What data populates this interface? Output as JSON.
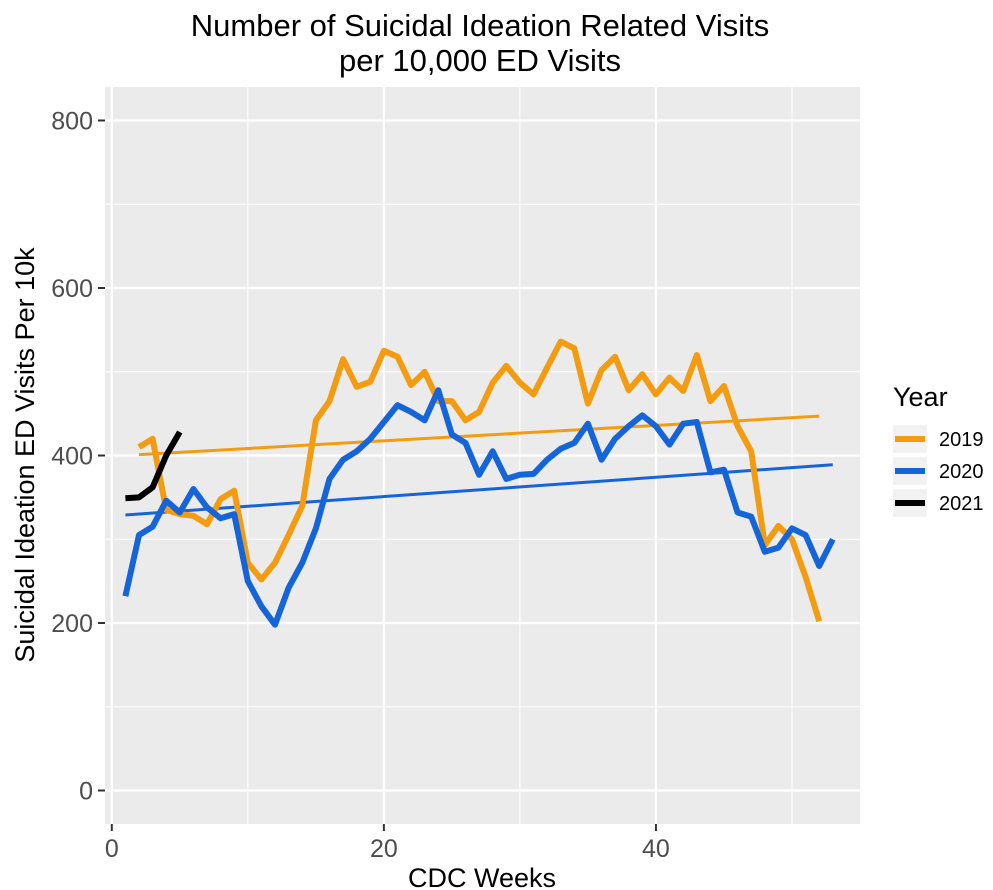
{
  "chart_data": {
    "type": "line",
    "title": "Number of Suicidal Ideation Related Visits",
    "subtitle": "per 10,000 ED Visits",
    "xlabel": "CDC Weeks",
    "ylabel": "Suicidal Ideation ED Visits Per 10k",
    "xlim": [
      -0.5,
      55
    ],
    "ylim": [
      -40,
      840
    ],
    "xticks": [
      0,
      20,
      40
    ],
    "yticks": [
      0,
      200,
      400,
      600,
      800
    ],
    "xtick_labels": [
      "0",
      "20",
      "40"
    ],
    "ytick_labels": [
      "0",
      "200",
      "400",
      "600",
      "800"
    ],
    "grid": true,
    "legend": {
      "title": "Year",
      "position": "right"
    },
    "series": [
      {
        "name": "2019",
        "color": "#F39C12",
        "x": [
          2,
          3,
          4,
          5,
          6,
          7,
          8,
          9,
          10,
          11,
          12,
          13,
          14,
          15,
          16,
          17,
          18,
          19,
          20,
          21,
          22,
          23,
          24,
          25,
          26,
          27,
          28,
          29,
          30,
          31,
          32,
          33,
          34,
          35,
          36,
          37,
          38,
          39,
          40,
          41,
          42,
          43,
          44,
          45,
          46,
          47,
          48,
          49,
          50,
          51,
          52
        ],
        "y": [
          410,
          420,
          335,
          330,
          328,
          318,
          348,
          358,
          272,
          252,
          272,
          305,
          340,
          442,
          465,
          515,
          482,
          488,
          525,
          518,
          484,
          500,
          465,
          465,
          442,
          452,
          487,
          507,
          487,
          473,
          505,
          536,
          528,
          462,
          502,
          518,
          478,
          497,
          473,
          493,
          477,
          520,
          465,
          483,
          435,
          405,
          293,
          316,
          300,
          255,
          202
        ],
        "trend": {
          "x": [
            2,
            52
          ],
          "y": [
            401,
            447
          ]
        }
      },
      {
        "name": "2020",
        "color": "#1565D8",
        "x": [
          1,
          2,
          3,
          4,
          5,
          6,
          7,
          8,
          9,
          10,
          11,
          12,
          13,
          14,
          15,
          16,
          17,
          18,
          19,
          20,
          21,
          22,
          23,
          24,
          25,
          26,
          27,
          28,
          29,
          30,
          31,
          32,
          33,
          34,
          35,
          36,
          37,
          38,
          39,
          40,
          41,
          42,
          43,
          44,
          45,
          46,
          47,
          48,
          49,
          50,
          51,
          52,
          53
        ],
        "y": [
          232,
          305,
          315,
          346,
          332,
          360,
          338,
          325,
          330,
          250,
          220,
          198,
          242,
          272,
          313,
          372,
          395,
          405,
          420,
          440,
          460,
          452,
          442,
          478,
          425,
          415,
          377,
          405,
          372,
          377,
          378,
          395,
          408,
          415,
          438,
          395,
          420,
          435,
          448,
          435,
          413,
          438,
          440,
          380,
          383,
          332,
          327,
          285,
          290,
          313,
          305,
          268,
          300
        ],
        "trend": {
          "x": [
            1,
            53
          ],
          "y": [
            329,
            389
          ]
        }
      },
      {
        "name": "2021",
        "color": "#000000",
        "x": [
          1,
          2,
          3,
          4,
          5
        ],
        "y": [
          349,
          350,
          362,
          400,
          428
        ],
        "trend": null
      }
    ]
  }
}
